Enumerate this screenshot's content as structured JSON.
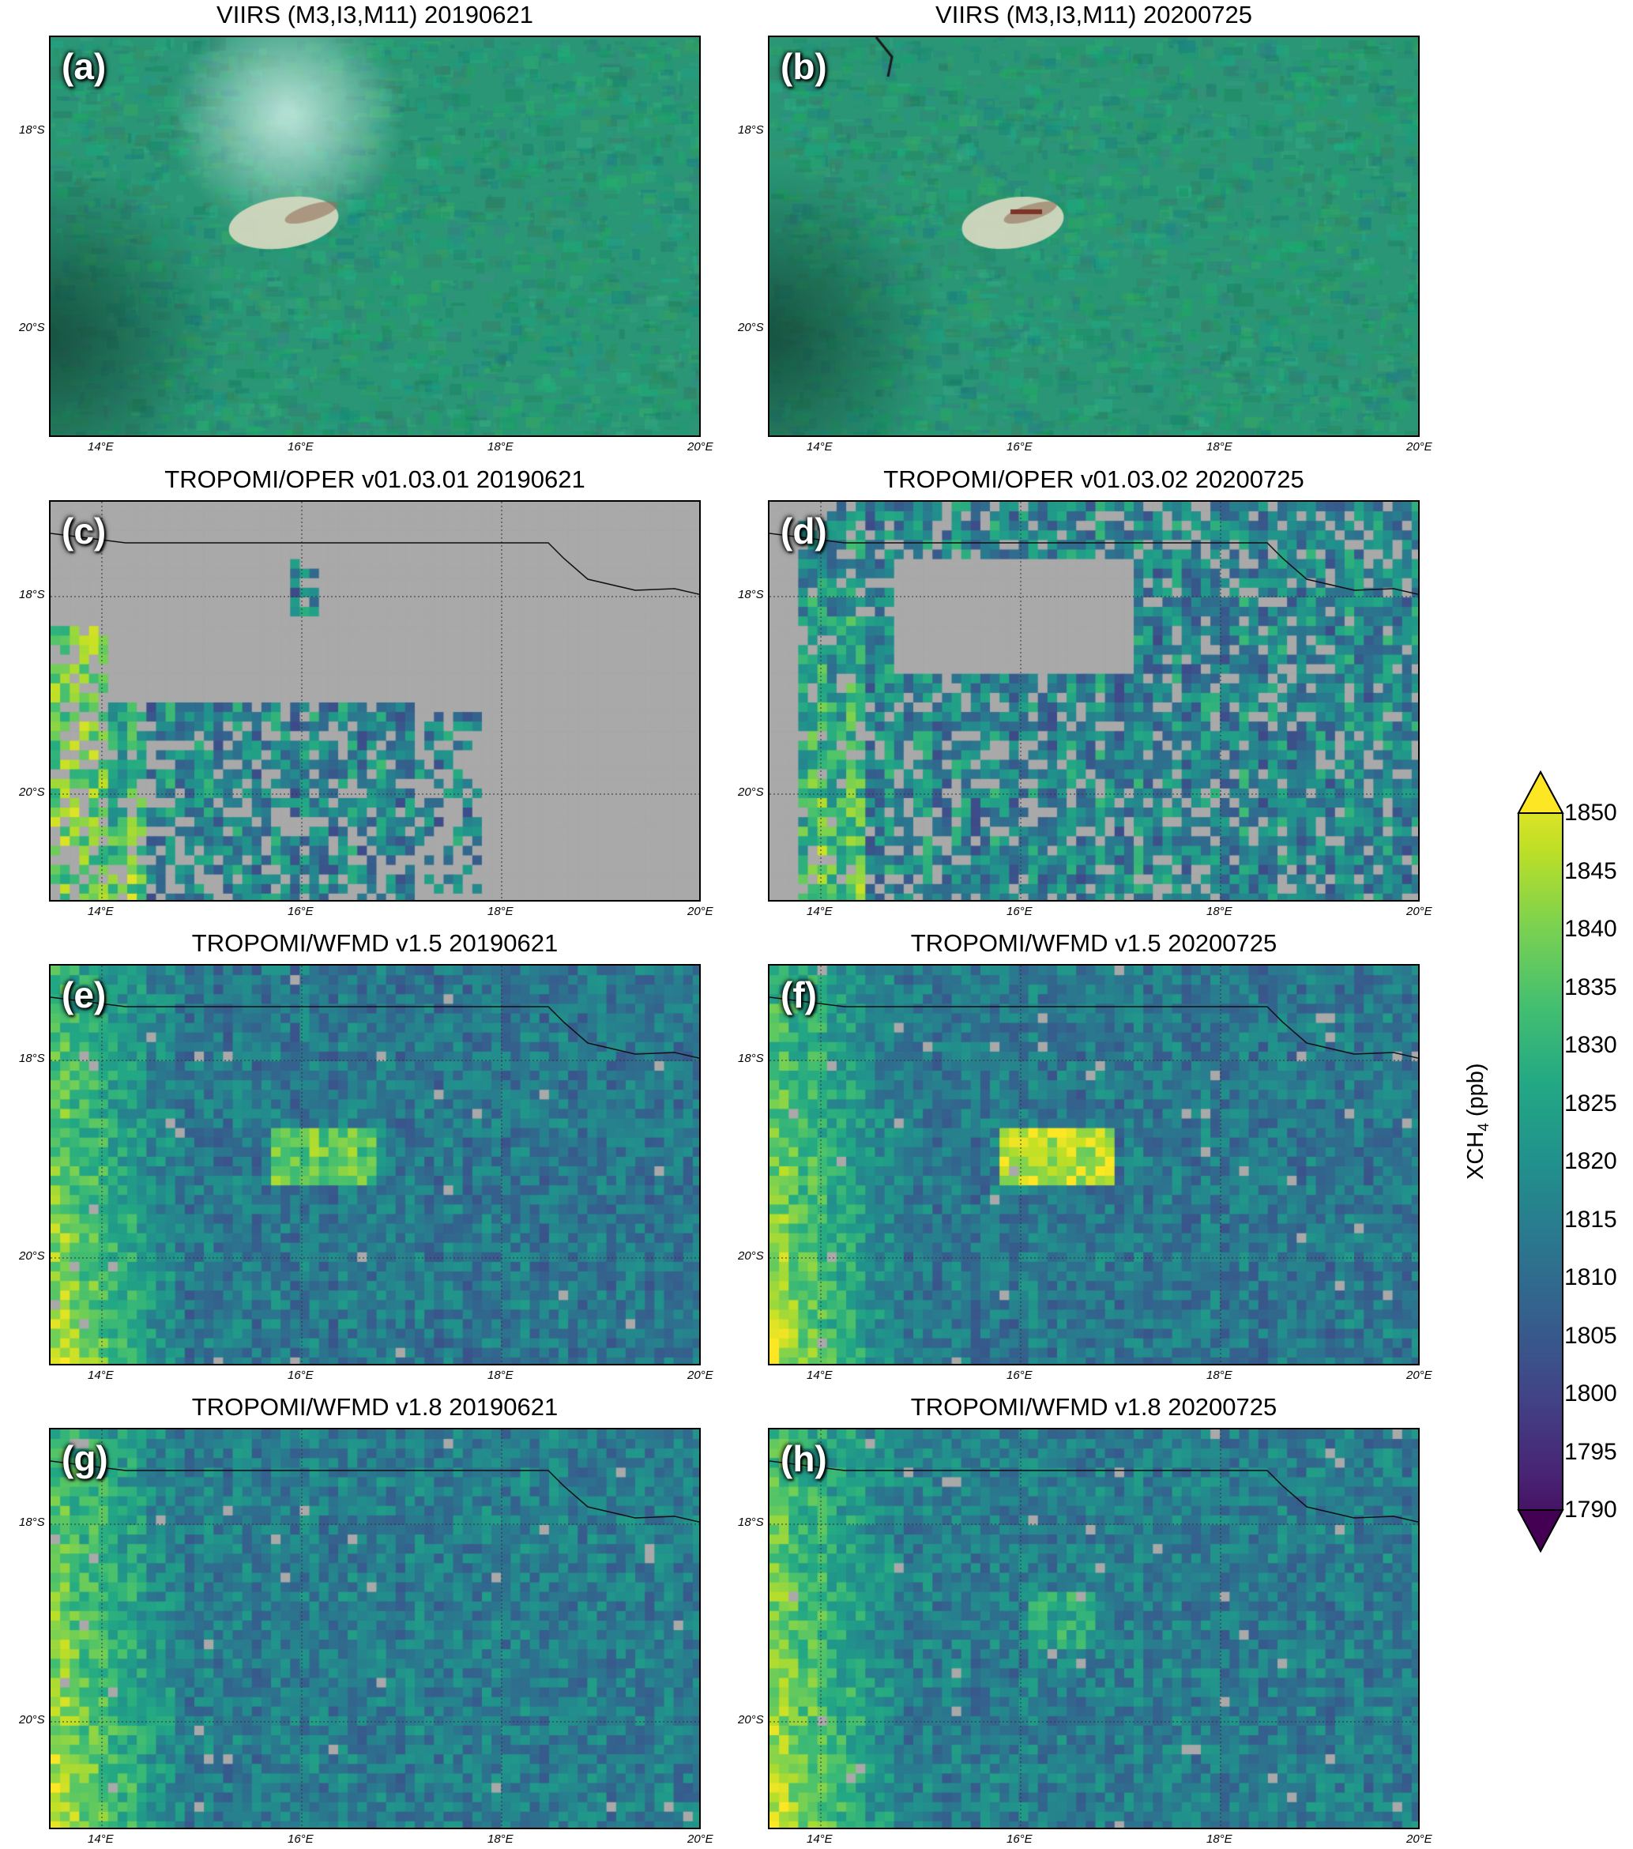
{
  "panels": [
    {
      "id": "a",
      "label": "(a)",
      "title": "VIIRS (M3,I3,M11)  20190621",
      "kind": "viirs",
      "seed": 11
    },
    {
      "id": "b",
      "label": "(b)",
      "title": "VIIRS (M3,I3,M11)  20200725",
      "kind": "viirs",
      "seed": 23
    },
    {
      "id": "c",
      "label": "(c)",
      "title": "TROPOMI/OPER v01.03.01  20190621",
      "kind": "oper1",
      "seed": 37
    },
    {
      "id": "d",
      "label": "(d)",
      "title": "TROPOMI/OPER v01.03.02  20200725",
      "kind": "oper2",
      "seed": 41
    },
    {
      "id": "e",
      "label": "(e)",
      "title": "TROPOMI/WFMD v1.5  20190621",
      "kind": "wfmd15a",
      "seed": 53
    },
    {
      "id": "f",
      "label": "(f)",
      "title": "TROPOMI/WFMD v1.5  20200725",
      "kind": "wfmd15b",
      "seed": 67
    },
    {
      "id": "g",
      "label": "(g)",
      "title": "TROPOMI/WFMD v1.8  20190621",
      "kind": "wfmd18a",
      "seed": 71
    },
    {
      "id": "h",
      "label": "(h)",
      "title": "TROPOMI/WFMD v1.8  20200725",
      "kind": "wfmd18b",
      "seed": 89
    }
  ],
  "axes": {
    "lon_ticks": [
      "14°E",
      "16°E",
      "18°E",
      "20°E"
    ],
    "lat_ticks": [
      "18°S",
      "20°S"
    ]
  },
  "colorbar": {
    "label_main": "XCH",
    "label_sub": "4",
    "label_unit": " (ppb)",
    "min": 1790,
    "max": 1850,
    "ticks": [
      "1850",
      "1845",
      "1840",
      "1835",
      "1830",
      "1825",
      "1820",
      "1815",
      "1810",
      "1805",
      "1800",
      "1795",
      "1790"
    ],
    "colormap": "viridis"
  }
}
